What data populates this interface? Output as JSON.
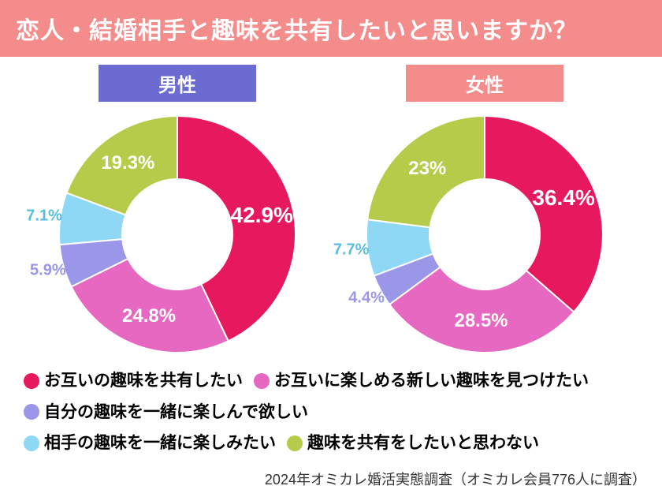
{
  "title": "恋人・結婚相手と趣味を共有したいと思いますか？",
  "title_bg": "#f58c8c",
  "title_color": "#ffffff",
  "background_color": "#ffffff",
  "donut": {
    "outer_r": 150,
    "inner_r": 70
  },
  "segments": [
    {
      "key": "share_each",
      "label": "お互いの趣味を共有したい",
      "color": "#e6195e"
    },
    {
      "key": "find_new",
      "label": "お互いに楽しめる新しい趣味を見つけたい",
      "color": "#e668c0"
    },
    {
      "key": "enjoy_mine",
      "label": "自分の趣味を一緒に楽しんで欲しい",
      "color": "#9a96e8"
    },
    {
      "key": "enjoy_theirs",
      "label": "相手の趣味を一緒に楽しみたい",
      "color": "#8fd8f5"
    },
    {
      "key": "no_share",
      "label": "趣味を共有をしたいと思わない",
      "color": "#b7cb4a"
    }
  ],
  "charts": [
    {
      "header": "男性",
      "header_bg": "#6b6bd1",
      "data": [
        {
          "seg": "share_each",
          "pct": 42.9,
          "pct_fontsize": 28,
          "pct_color": "#ffffff",
          "pct_r": 1.0
        },
        {
          "seg": "find_new",
          "pct": 24.8,
          "pct_fontsize": 24,
          "pct_color": "#ffffff",
          "pct_r": 1.0
        },
        {
          "seg": "enjoy_mine",
          "pct": 5.9,
          "pct_fontsize": 20,
          "pct_color": "#9a96e8",
          "pct_r": 1.55
        },
        {
          "seg": "enjoy_theirs",
          "pct": 7.1,
          "pct_fontsize": 20,
          "pct_color": "#59bde0",
          "pct_r": 1.55
        },
        {
          "seg": "no_share",
          "pct": 19.3,
          "pct_fontsize": 24,
          "pct_color": "#ffffff",
          "pct_r": 1.0
        }
      ]
    },
    {
      "header": "女性",
      "header_bg": "#f58c8c",
      "data": [
        {
          "seg": "share_each",
          "pct": 36.4,
          "pct_fontsize": 28,
          "pct_color": "#ffffff",
          "pct_r": 1.0
        },
        {
          "seg": "find_new",
          "pct": 28.5,
          "pct_fontsize": 24,
          "pct_color": "#ffffff",
          "pct_r": 1.0
        },
        {
          "seg": "enjoy_mine",
          "pct": 4.4,
          "pct_fontsize": 20,
          "pct_color": "#9a96e8",
          "pct_r": 1.55
        },
        {
          "seg": "enjoy_theirs",
          "pct": 7.7,
          "pct_fontsize": 20,
          "pct_color": "#59bde0",
          "pct_r": 1.55
        },
        {
          "seg": "no_share",
          "pct": 23.0,
          "pct_fontsize": 24,
          "pct_color": "#ffffff",
          "pct_r": 1.0,
          "pct_fmt": "23%"
        }
      ]
    }
  ],
  "legend_fontsize": 21,
  "footnote": "2024年オミカレ婚活実態調査（オミカレ会員776人に調査）",
  "stroke": {
    "color": "#ffffff",
    "width": 2
  }
}
